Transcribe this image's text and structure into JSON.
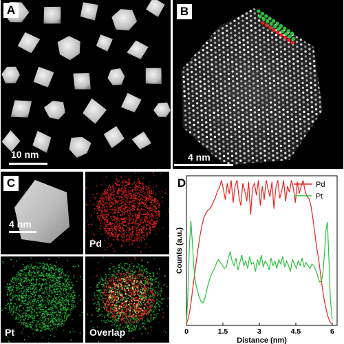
{
  "panels": {
    "a": {
      "label": "A",
      "scale": "10 nm"
    },
    "b": {
      "label": "B",
      "scale": "4 nm"
    },
    "c": {
      "label": "C",
      "scale": "4 nm",
      "maps": {
        "pd": "Pd",
        "pt": "Pt",
        "overlap": "Overlap"
      }
    },
    "d": {
      "label": "D"
    }
  },
  "colors": {
    "pd": "#e8231f",
    "pt": "#27c43b"
  },
  "chart_data": {
    "type": "line",
    "title": "",
    "xlabel": "Distance (nm)",
    "ylabel": "Counts (a.u.)",
    "xlim": [
      0,
      6.2
    ],
    "ylim": [
      0,
      1
    ],
    "xticks": [
      "0",
      "1.5",
      "3",
      "4.5",
      "6"
    ],
    "legend_position": "top-right",
    "series": [
      {
        "name": "Pd",
        "x": [
          0,
          0.08,
          0.16,
          0.24,
          0.32,
          0.4,
          0.48,
          0.56,
          0.64,
          0.72,
          0.8,
          0.88,
          0.96,
          1.04,
          1.12,
          1.2,
          1.28,
          1.36,
          1.44,
          1.52,
          1.6,
          1.68,
          1.76,
          1.84,
          1.92,
          2.0,
          2.08,
          2.16,
          2.24,
          2.32,
          2.4,
          2.48,
          2.56,
          2.64,
          2.72,
          2.8,
          2.88,
          2.96,
          3.04,
          3.12,
          3.2,
          3.28,
          3.36,
          3.44,
          3.52,
          3.6,
          3.68,
          3.76,
          3.84,
          3.92,
          4.0,
          4.08,
          4.16,
          4.24,
          4.32,
          4.4,
          4.48,
          4.56,
          4.64,
          4.72,
          4.8,
          4.88,
          4.96,
          5.04,
          5.12,
          5.2,
          5.28,
          5.36,
          5.44,
          5.52,
          5.6,
          5.68,
          5.76,
          5.84,
          5.92,
          6.0
        ],
        "y": [
          0.01,
          0.05,
          0.12,
          0.22,
          0.32,
          0.42,
          0.52,
          0.6,
          0.67,
          0.72,
          0.75,
          0.77,
          0.78,
          0.8,
          0.83,
          0.86,
          0.9,
          0.92,
          0.97,
          0.91,
          0.84,
          0.95,
          0.88,
          0.97,
          0.82,
          0.93,
          0.97,
          0.86,
          0.8,
          0.95,
          0.9,
          0.83,
          0.96,
          0.74,
          0.92,
          0.95,
          0.87,
          0.97,
          0.8,
          0.93,
          0.84,
          0.97,
          0.91,
          0.86,
          0.96,
          0.78,
          0.92,
          0.97,
          0.85,
          0.9,
          0.97,
          0.83,
          0.93,
          0.89,
          0.97,
          0.92,
          0.82,
          0.96,
          0.88,
          0.93,
          0.97,
          0.9,
          0.86,
          0.85,
          0.8,
          0.72,
          0.62,
          0.52,
          0.44,
          0.34,
          0.24,
          0.16,
          0.1,
          0.05,
          0.02,
          0.01
        ]
      },
      {
        "name": "Pt",
        "x": [
          0,
          0.06,
          0.12,
          0.18,
          0.24,
          0.3,
          0.36,
          0.44,
          0.52,
          0.6,
          0.68,
          0.76,
          0.84,
          0.92,
          1.0,
          1.08,
          1.16,
          1.24,
          1.32,
          1.4,
          1.48,
          1.56,
          1.64,
          1.72,
          1.8,
          1.88,
          1.96,
          2.04,
          2.12,
          2.2,
          2.28,
          2.36,
          2.44,
          2.52,
          2.6,
          2.68,
          2.76,
          2.84,
          2.92,
          3.0,
          3.08,
          3.16,
          3.24,
          3.32,
          3.4,
          3.48,
          3.56,
          3.64,
          3.72,
          3.8,
          3.88,
          3.96,
          4.04,
          4.12,
          4.2,
          4.28,
          4.36,
          4.44,
          4.52,
          4.6,
          4.68,
          4.76,
          4.84,
          4.92,
          5.0,
          5.08,
          5.16,
          5.24,
          5.32,
          5.4,
          5.48,
          5.56,
          5.62,
          5.68,
          5.74,
          5.8,
          5.86,
          5.92,
          6.0
        ],
        "y": [
          0.02,
          0.2,
          0.52,
          0.7,
          0.56,
          0.4,
          0.3,
          0.24,
          0.19,
          0.16,
          0.15,
          0.18,
          0.24,
          0.29,
          0.33,
          0.36,
          0.38,
          0.42,
          0.44,
          0.42,
          0.4,
          0.38,
          0.39,
          0.45,
          0.49,
          0.43,
          0.4,
          0.45,
          0.37,
          0.42,
          0.47,
          0.4,
          0.43,
          0.38,
          0.46,
          0.41,
          0.42,
          0.36,
          0.44,
          0.4,
          0.47,
          0.39,
          0.43,
          0.41,
          0.37,
          0.45,
          0.4,
          0.43,
          0.38,
          0.44,
          0.41,
          0.46,
          0.39,
          0.43,
          0.4,
          0.36,
          0.44,
          0.41,
          0.38,
          0.43,
          0.4,
          0.45,
          0.39,
          0.42,
          0.4,
          0.38,
          0.41,
          0.4,
          0.37,
          0.33,
          0.29,
          0.3,
          0.36,
          0.48,
          0.64,
          0.69,
          0.45,
          0.18,
          0.04
        ]
      }
    ]
  }
}
